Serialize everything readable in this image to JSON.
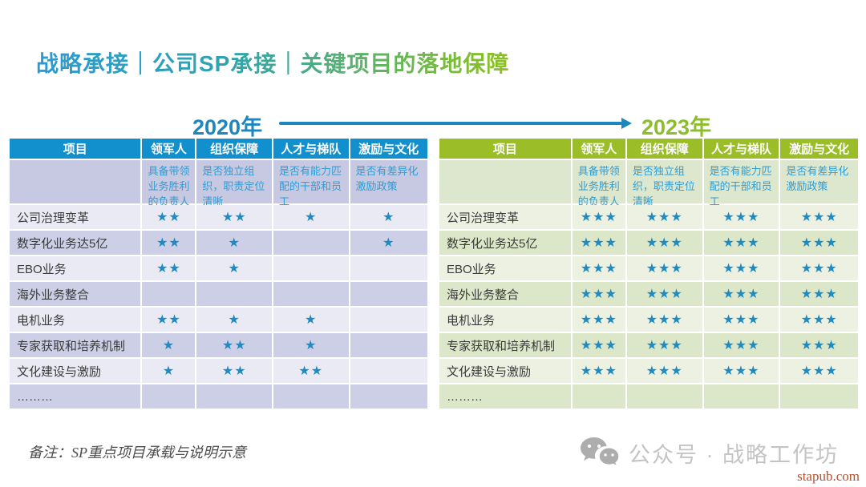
{
  "slide": {
    "title": "战略承接｜公司SP承接｜关键项目的落地保障"
  },
  "timeline": {
    "start_year": "2020年",
    "end_year": "2023年",
    "start_color": "#1C87BE",
    "end_color": "#8CBE2A",
    "arrow_color": "#1C87BE"
  },
  "table_common": {
    "columns": [
      "项目",
      "领军人",
      "组织保障",
      "人才与梯队",
      "激励与文化"
    ],
    "criteria": [
      "具备带领业务胜利的负责人",
      "是否独立组织，职责定位清晰",
      "是否有能力匹配的干部和员工",
      "是否有差异化激励政策"
    ],
    "row_labels": [
      "公司治理变革",
      "数字化业务达5亿",
      "EBO业务",
      "海外业务整合",
      "电机业务",
      "专家获取和培养机制",
      "文化建设与激励",
      "………"
    ],
    "star_char": "★",
    "star_color": "#1E8BC3"
  },
  "table_2020": {
    "theme": {
      "header_bg": "#1290CE",
      "subheader_bg": "#C7C9E2",
      "row_light": "#E9EAF4",
      "row_dark": "#CDCFE6"
    },
    "ratings": [
      [
        2,
        2,
        1,
        1
      ],
      [
        2,
        1,
        0,
        1
      ],
      [
        2,
        1,
        0,
        0
      ],
      [
        0,
        0,
        0,
        0
      ],
      [
        2,
        1,
        1,
        0
      ],
      [
        1,
        2,
        1,
        0
      ],
      [
        1,
        2,
        2,
        0
      ],
      [
        0,
        0,
        0,
        0
      ]
    ]
  },
  "table_2023": {
    "theme": {
      "header_bg": "#9ABD28",
      "subheader_bg": "#DDE7CE",
      "row_light": "#EDF1E2",
      "row_dark": "#DCE6C9"
    },
    "ratings": [
      [
        3,
        3,
        3,
        3
      ],
      [
        3,
        3,
        3,
        3
      ],
      [
        3,
        3,
        3,
        3
      ],
      [
        3,
        3,
        3,
        3
      ],
      [
        3,
        3,
        3,
        3
      ],
      [
        3,
        3,
        3,
        3
      ],
      [
        3,
        3,
        3,
        3
      ],
      [
        0,
        0,
        0,
        0
      ]
    ]
  },
  "footer": {
    "note": "备注：SP重点项目承载与说明示意",
    "watermark": "公众号 · 战略工作坊",
    "site": "stapub.com"
  }
}
